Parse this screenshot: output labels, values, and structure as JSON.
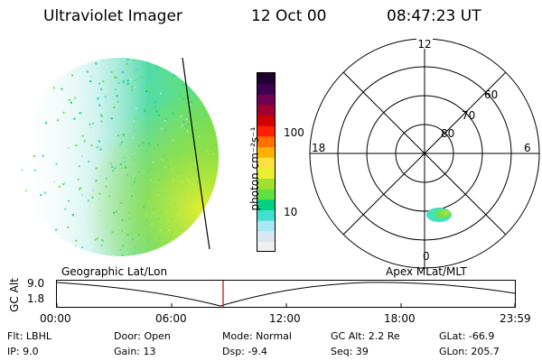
{
  "header": {
    "instrument": "Ultraviolet Imager",
    "date": "12 Oct 00",
    "time": "08:47:23 UT"
  },
  "colorbar": {
    "unit_label": "photon cm⁻²s⁻¹",
    "tick_100": "100",
    "tick_10": "10",
    "colors": [
      "#f0f0f0",
      "#d8e8f0",
      "#a8e8f0",
      "#40e0d0",
      "#00d080",
      "#60e040",
      "#a0e030",
      "#e8f030",
      "#ffe040",
      "#ffb000",
      "#ff7000",
      "#ff2000",
      "#d00000",
      "#a00030",
      "#700050",
      "#400050",
      "#200030"
    ]
  },
  "polar": {
    "ring_labels": [
      "80",
      "70",
      "60"
    ],
    "mlt_labels": {
      "top": "12",
      "left": "18",
      "right": "6",
      "bottom": "0"
    }
  },
  "panels": {
    "left_title": "Geographic Lat/Lon",
    "right_title": "Apex MLat/MLT"
  },
  "altitude_plot": {
    "axis_label": "GC Alt",
    "y_ticks": [
      "9.0",
      "1.8"
    ],
    "x_ticks": [
      "00:00",
      "06:00",
      "12:00",
      "18:00",
      "23:59"
    ]
  },
  "info": {
    "filter": "Flt: LBHL",
    "ip": "IP:  9.0",
    "door": "Door: Open",
    "gain": "Gain: 13",
    "mode": "Mode: Normal",
    "dsp": "Dsp:    -9.4",
    "gc_alt": "GC Alt: 2.2 Re",
    "seq": "Seq: 39",
    "glat": "GLat: -66.9",
    "glon": "GLon: 205.7"
  }
}
